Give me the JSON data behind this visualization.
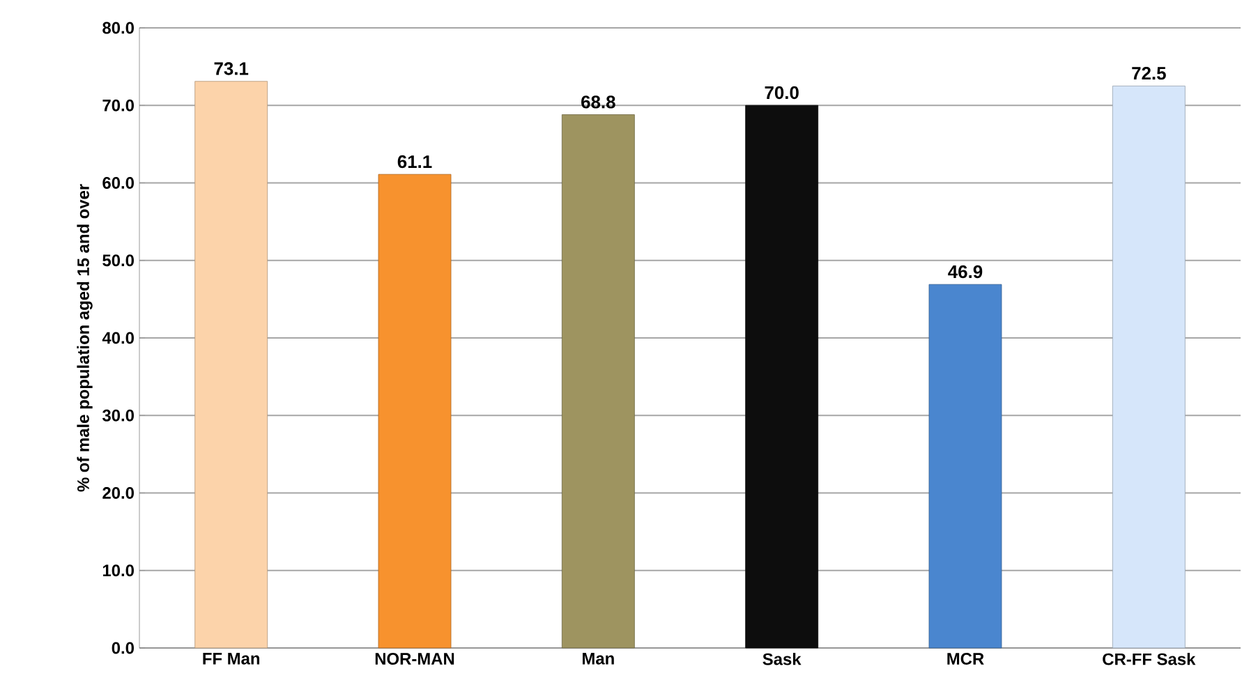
{
  "chart_data": {
    "type": "bar",
    "ylabel": "% of male population aged 15 and over",
    "categories": [
      "FF Man",
      "NOR-MAN",
      "Man",
      "Sask",
      "MCR",
      "CR-FF Sask"
    ],
    "values": [
      73.1,
      61.1,
      68.8,
      70.0,
      46.9,
      72.5
    ],
    "colors": [
      "#fcd3aa",
      "#f7922e",
      "#9e9460",
      "#0d0d0d",
      "#4a86cf",
      "#d6e6fa"
    ],
    "ylim": [
      0,
      80
    ],
    "yticks": [
      {
        "value": 0,
        "label": "0.0"
      },
      {
        "value": 10,
        "label": "10.0"
      },
      {
        "value": 20,
        "label": "20.0"
      },
      {
        "value": 30,
        "label": "30.0"
      },
      {
        "value": 40,
        "label": "40.0"
      },
      {
        "value": 50,
        "label": "50.0"
      },
      {
        "value": 60,
        "label": "60.0"
      },
      {
        "value": 70,
        "label": "70.0"
      },
      {
        "value": 80,
        "label": "80.0"
      }
    ],
    "value_labels": [
      "73.1",
      "61.1",
      "68.8",
      "70.0",
      "46.9",
      "72.5"
    ],
    "grid": "y"
  }
}
